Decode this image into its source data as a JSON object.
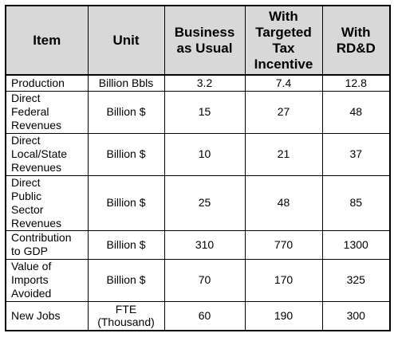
{
  "table": {
    "headers": [
      "Item",
      "Unit",
      "Business\nas Usual",
      "With\nTargeted\nTax\nIncentive",
      "With\nRD&D"
    ],
    "rows": [
      {
        "item": "Production",
        "unit": "Billion Bbls",
        "bau": "3.2",
        "tax": "7.4",
        "rdd": "12.8"
      },
      {
        "item": "Direct\nFederal\nRevenues",
        "unit": "Billion $",
        "bau": "15",
        "tax": "27",
        "rdd": "48"
      },
      {
        "item": "Direct\nLocal/State\nRevenues",
        "unit": "Billion $",
        "bau": "10",
        "tax": "21",
        "rdd": "37"
      },
      {
        "item": "Direct\nPublic\nSector\nRevenues",
        "unit": "Billion $",
        "bau": "25",
        "tax": "48",
        "rdd": "85"
      },
      {
        "item": "Contribution\nto GDP",
        "unit": "Billion $",
        "bau": "310",
        "tax": "770",
        "rdd": "1300"
      },
      {
        "item": "Value of\nImports\nAvoided",
        "unit": "Billion $",
        "bau": "70",
        "tax": "170",
        "rdd": "325"
      },
      {
        "item": "New Jobs",
        "unit": "FTE\n(Thousand)",
        "bau": "60",
        "tax": "190",
        "rdd": "300"
      }
    ]
  },
  "colors": {
    "header_background": "#d8d8d8",
    "border": "#000000",
    "text": "#000000"
  }
}
